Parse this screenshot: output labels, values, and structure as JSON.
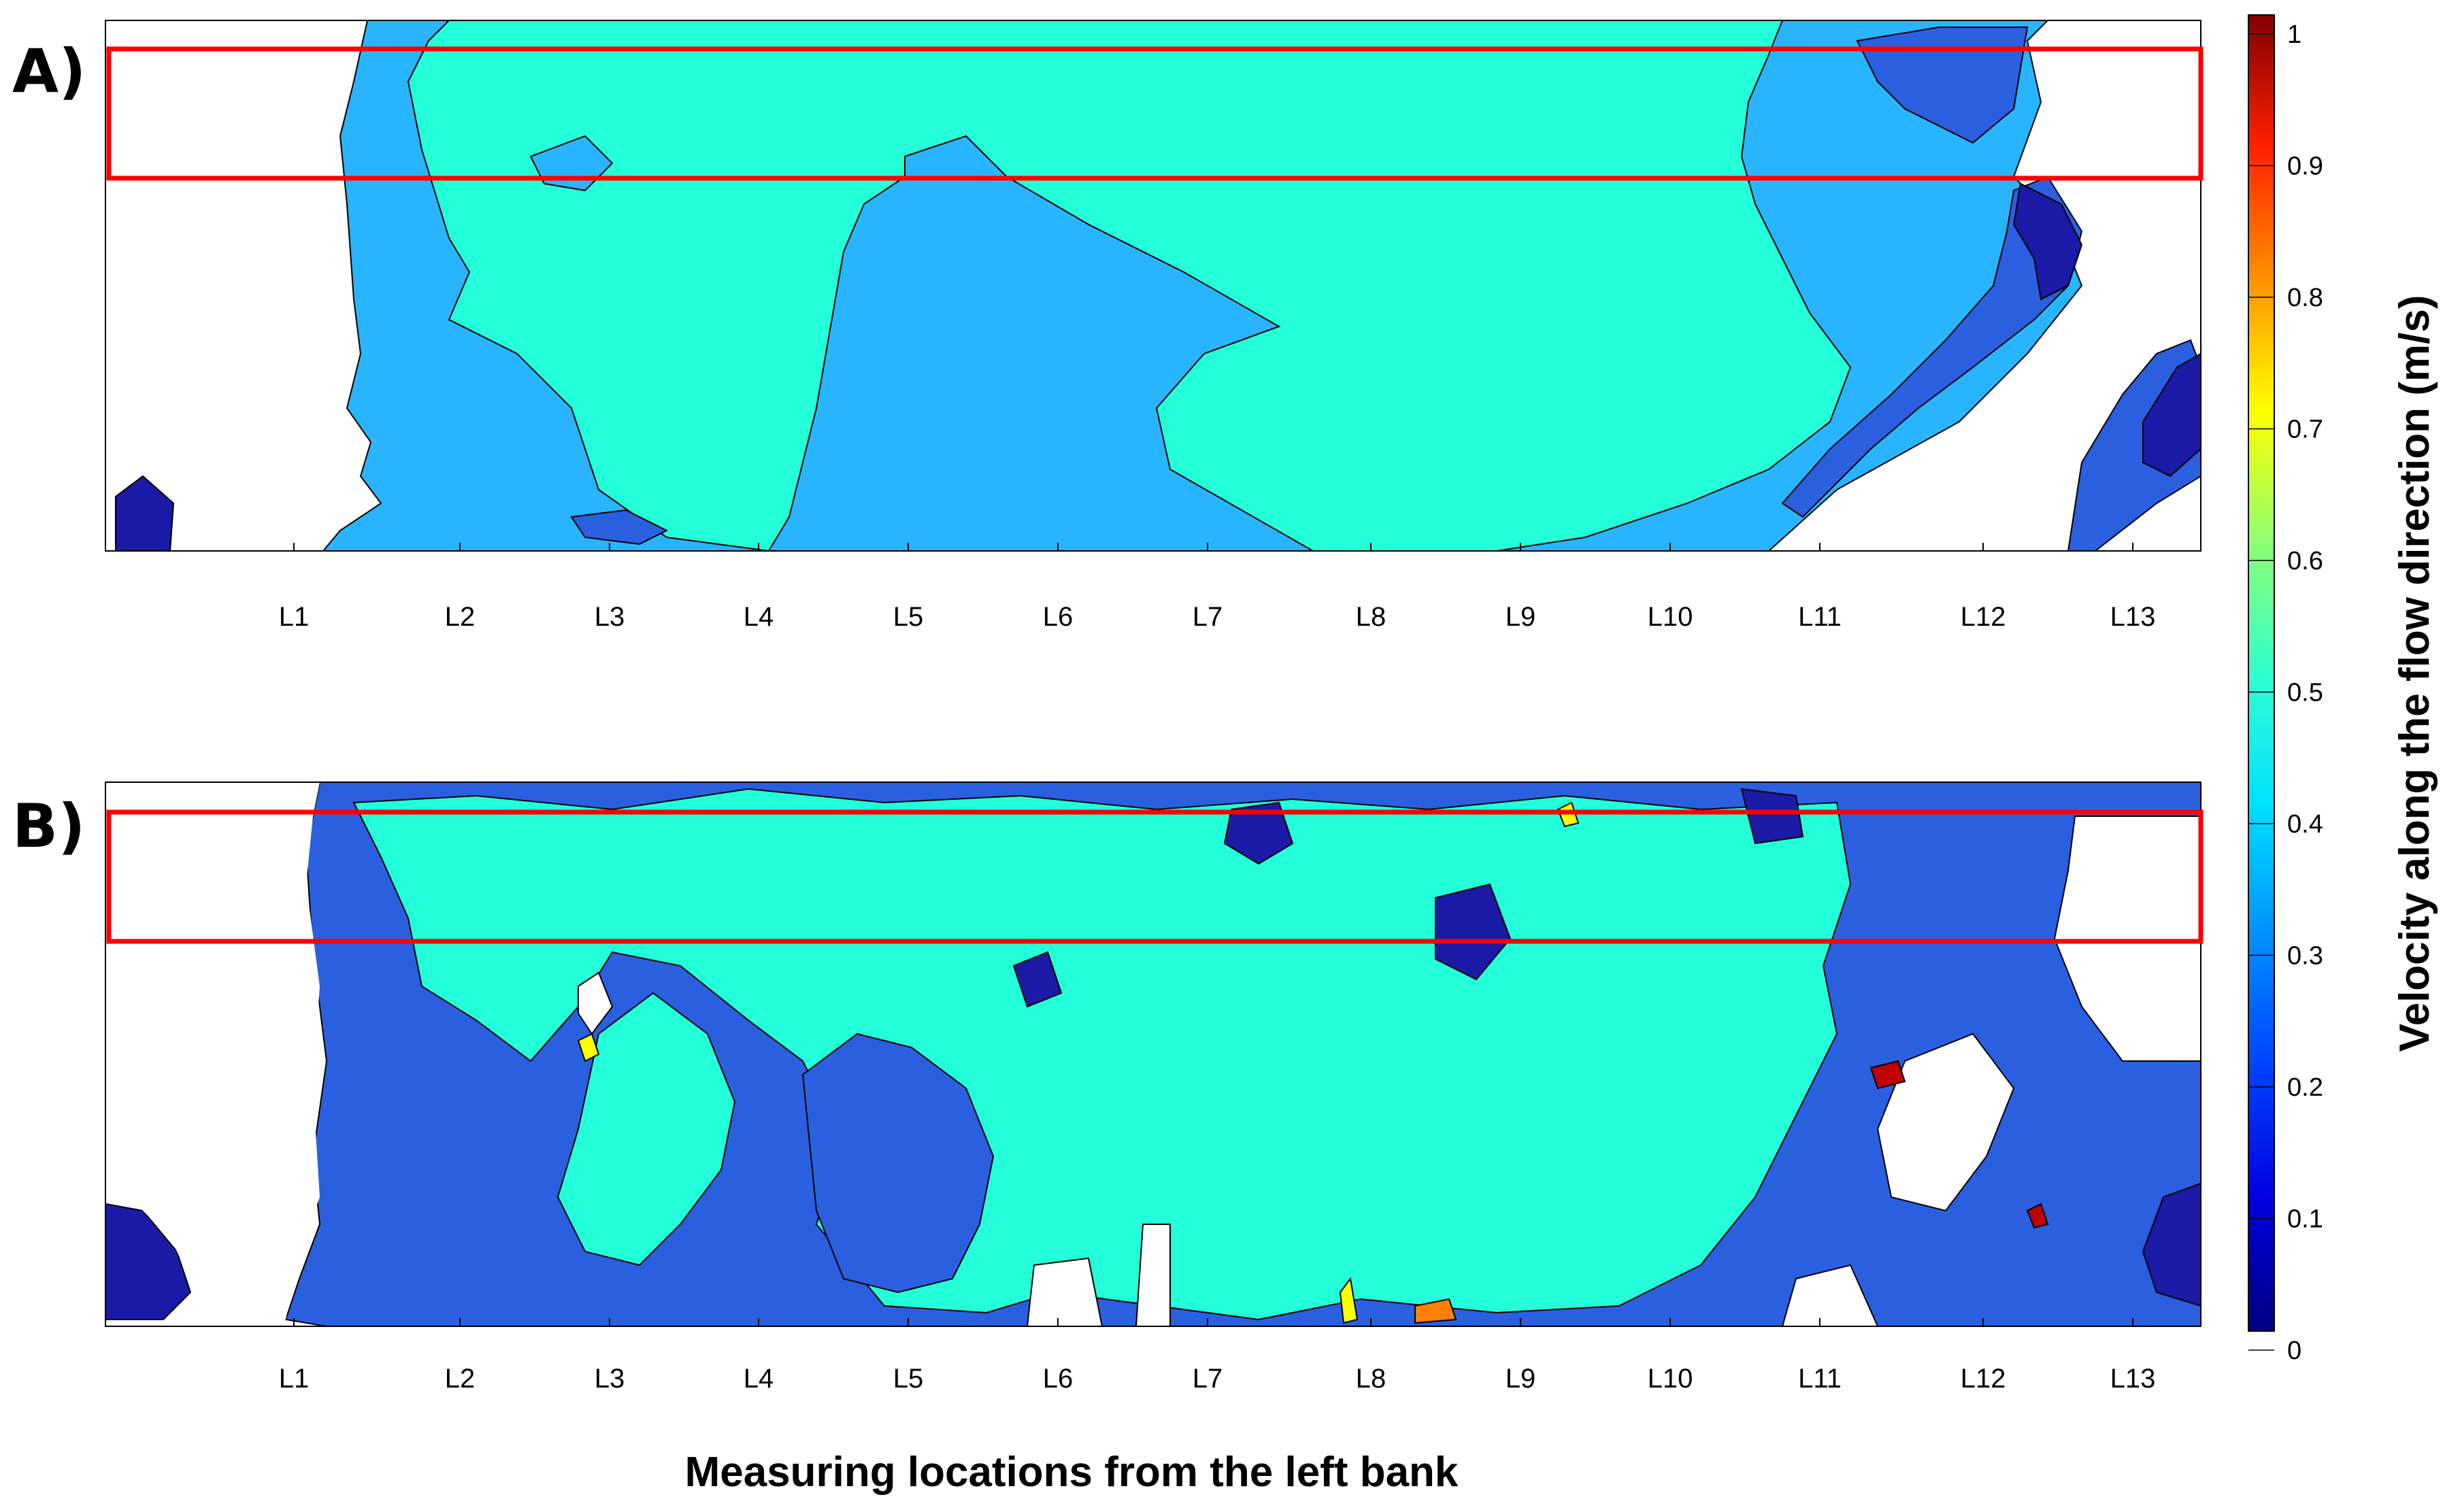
{
  "panels": [
    {
      "label": "A)"
    },
    {
      "label": "B)"
    }
  ],
  "chart_data": [
    {
      "type": "heatmap",
      "panel": "A)",
      "x_tick_labels": [
        "L1",
        "L2",
        "L3",
        "L4",
        "L5",
        "L6",
        "L7",
        "L8",
        "L9",
        "L10",
        "L11",
        "L12",
        "L13"
      ],
      "xlabel": "Measuring locations from the left bank",
      "ylabel": "",
      "value_label": "Velocity along the flow direction (m/s)",
      "dominant_values_m_s": {
        "core_region": 0.42,
        "near_banks": 0.35,
        "edge_patches": 0.2
      },
      "highlight_box": "red rectangle near top of panel"
    },
    {
      "type": "heatmap",
      "panel": "B)",
      "x_tick_labels": [
        "L1",
        "L2",
        "L3",
        "L4",
        "L5",
        "L6",
        "L7",
        "L8",
        "L9",
        "L10",
        "L11",
        "L12",
        "L13"
      ],
      "xlabel": "Measuring locations from the left bank",
      "ylabel": "",
      "value_label": "Velocity along the flow direction (m/s)",
      "dominant_values_m_s": {
        "core_region": 0.38,
        "surrounding": 0.22,
        "patches": 0.1
      },
      "highlight_box": "red rectangle near top of panel"
    }
  ],
  "colorbar": {
    "title": "Velocity along the flow direction (m/s)",
    "ticks": [
      "1",
      "0.9",
      "0.8",
      "0.7",
      "0.6",
      "0.5",
      "0.4",
      "0.3",
      "0.2",
      "0.1",
      "0"
    ],
    "range": [
      0,
      1
    ],
    "colormap": [
      "#000080",
      "#0000c8",
      "#0000ff",
      "#0040ff",
      "#0080ff",
      "#00c0ff",
      "#00ffff",
      "#40ffc0",
      "#80ff80",
      "#c0ff40",
      "#ffff00",
      "#ffc000",
      "#ff8000",
      "#ff4000",
      "#ff0000",
      "#c00000",
      "#800000"
    ]
  },
  "colors": {
    "box": "#ff0000",
    "dark_blue": "#1a1aa6",
    "mid_blue": "#2a5fe0",
    "light_blue": "#28b4ff",
    "cyan": "#23ffd8"
  }
}
